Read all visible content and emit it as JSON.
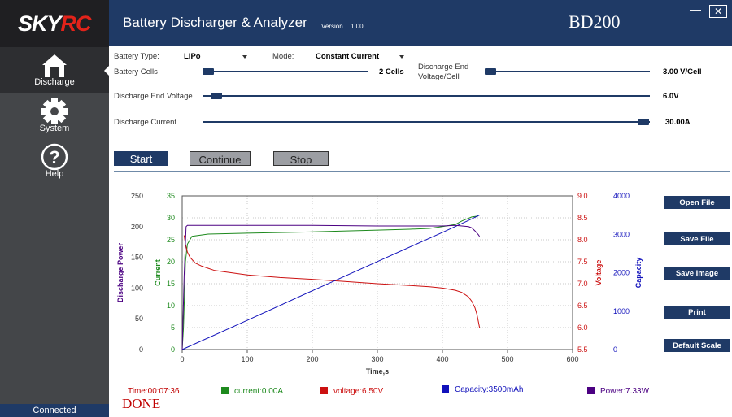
{
  "brand": {
    "logo_left": "SKY",
    "logo_right": "RC"
  },
  "header": {
    "title": "Battery Discharger & Analyzer",
    "version_label": "Version",
    "version_value": "1.00",
    "model": "BD200",
    "minimize": "—",
    "close": "✕"
  },
  "sidebar": {
    "items": [
      {
        "label": "Discharge",
        "icon": "home-icon",
        "active": true
      },
      {
        "label": "System",
        "icon": "gear-icon",
        "active": false
      },
      {
        "label": "Help",
        "icon": "help-icon",
        "active": false
      }
    ],
    "status": "Connected"
  },
  "settings": {
    "battery_type": {
      "label": "Battery Type:",
      "value": "LiPo"
    },
    "mode": {
      "label": "Mode:",
      "value": "Constant Current"
    },
    "battery_cells": {
      "label": "Battery Cells",
      "value": "2 Cells",
      "position": 0.0
    },
    "discharge_end_cell": {
      "label_line1": "Discharge End",
      "label_line2": "Voltage/Cell",
      "value": "3.00 V/Cell",
      "position": 0.0
    },
    "discharge_end_voltage": {
      "label": "Discharge End Voltage",
      "value": "6.0V",
      "position": 0.02
    },
    "discharge_current": {
      "label": "Discharge Current",
      "value": "30.00A",
      "position": 1.0
    }
  },
  "controls": {
    "start": "Start",
    "continue": "Continue",
    "stop": "Stop"
  },
  "actions": {
    "open_file": "Open File",
    "save_file": "Save File",
    "save_image": "Save Image",
    "print": "Print",
    "default_scale": "Default Scale"
  },
  "readouts": {
    "time": "Time:00:07:36",
    "current": "current:0.00A",
    "voltage": "voltage:6.50V",
    "capacity": "Capacity:3500mAh",
    "power": "Power:7.33W",
    "status": "DONE"
  },
  "colors": {
    "current": "#1e8a1e",
    "voltage": "#cc1111",
    "capacity": "#1111bb",
    "power": "#4b0082",
    "accent": "#1f3a66"
  },
  "chart_data": {
    "type": "line",
    "xlabel": "Time,s",
    "x_ticks": [
      "0",
      "100",
      "200",
      "300",
      "400",
      "500",
      "600"
    ],
    "xlim": [
      0,
      600
    ],
    "axes": {
      "power": {
        "label": "Discharge Power",
        "ticks": [
          "0",
          "50",
          "100",
          "150",
          "200",
          "250"
        ],
        "range": [
          0,
          250
        ]
      },
      "current": {
        "label": "Current",
        "ticks": [
          "0",
          "5",
          "10",
          "15",
          "20",
          "25",
          "30",
          "35"
        ],
        "range": [
          0,
          35
        ]
      },
      "voltage": {
        "label": "Voltage",
        "ticks": [
          "5.5",
          "6.0",
          "6.5",
          "7.0",
          "7.5",
          "8.0",
          "8.5",
          "9.0"
        ],
        "range": [
          5.5,
          9.0
        ]
      },
      "capacity": {
        "label": "Capacity",
        "ticks": [
          "0",
          "1000",
          "2000",
          "3000",
          "4000"
        ],
        "range": [
          0,
          4000
        ]
      }
    },
    "series": [
      {
        "name": "current",
        "axis": "current",
        "x": [
          0,
          2,
          5,
          8,
          15,
          40,
          100,
          200,
          300,
          350,
          380,
          400,
          420,
          430,
          445,
          455
        ],
        "y": [
          0,
          5,
          20,
          24,
          25.8,
          26.3,
          26.5,
          26.8,
          27.2,
          27.4,
          27.6,
          28.0,
          28.5,
          29.3,
          30.2,
          30.4
        ]
      },
      {
        "name": "voltage",
        "axis": "voltage",
        "x": [
          3,
          5,
          8,
          12,
          20,
          30,
          50,
          100,
          150,
          200,
          250,
          300,
          350,
          380,
          400,
          420,
          430,
          440,
          445,
          450,
          453,
          455,
          457
        ],
        "y": [
          8.1,
          7.9,
          7.72,
          7.6,
          7.47,
          7.4,
          7.3,
          7.2,
          7.14,
          7.1,
          7.05,
          7.0,
          6.96,
          6.93,
          6.9,
          6.85,
          6.8,
          6.7,
          6.6,
          6.45,
          6.3,
          6.15,
          6.0
        ]
      },
      {
        "name": "capacity",
        "axis": "capacity",
        "x": [
          0,
          100,
          200,
          300,
          400,
          440,
          457
        ],
        "y": [
          0,
          760,
          1530,
          2290,
          3050,
          3360,
          3500
        ]
      },
      {
        "name": "power",
        "axis": "power",
        "x": [
          0,
          3,
          6,
          8,
          50,
          100,
          200,
          300,
          350,
          380,
          400,
          420,
          430,
          440,
          445,
          450,
          455,
          457
        ],
        "y": [
          0,
          120,
          200,
          202,
          202,
          202,
          202,
          201,
          201,
          201,
          201,
          202,
          201,
          200,
          198,
          193,
          187,
          184
        ]
      }
    ]
  }
}
